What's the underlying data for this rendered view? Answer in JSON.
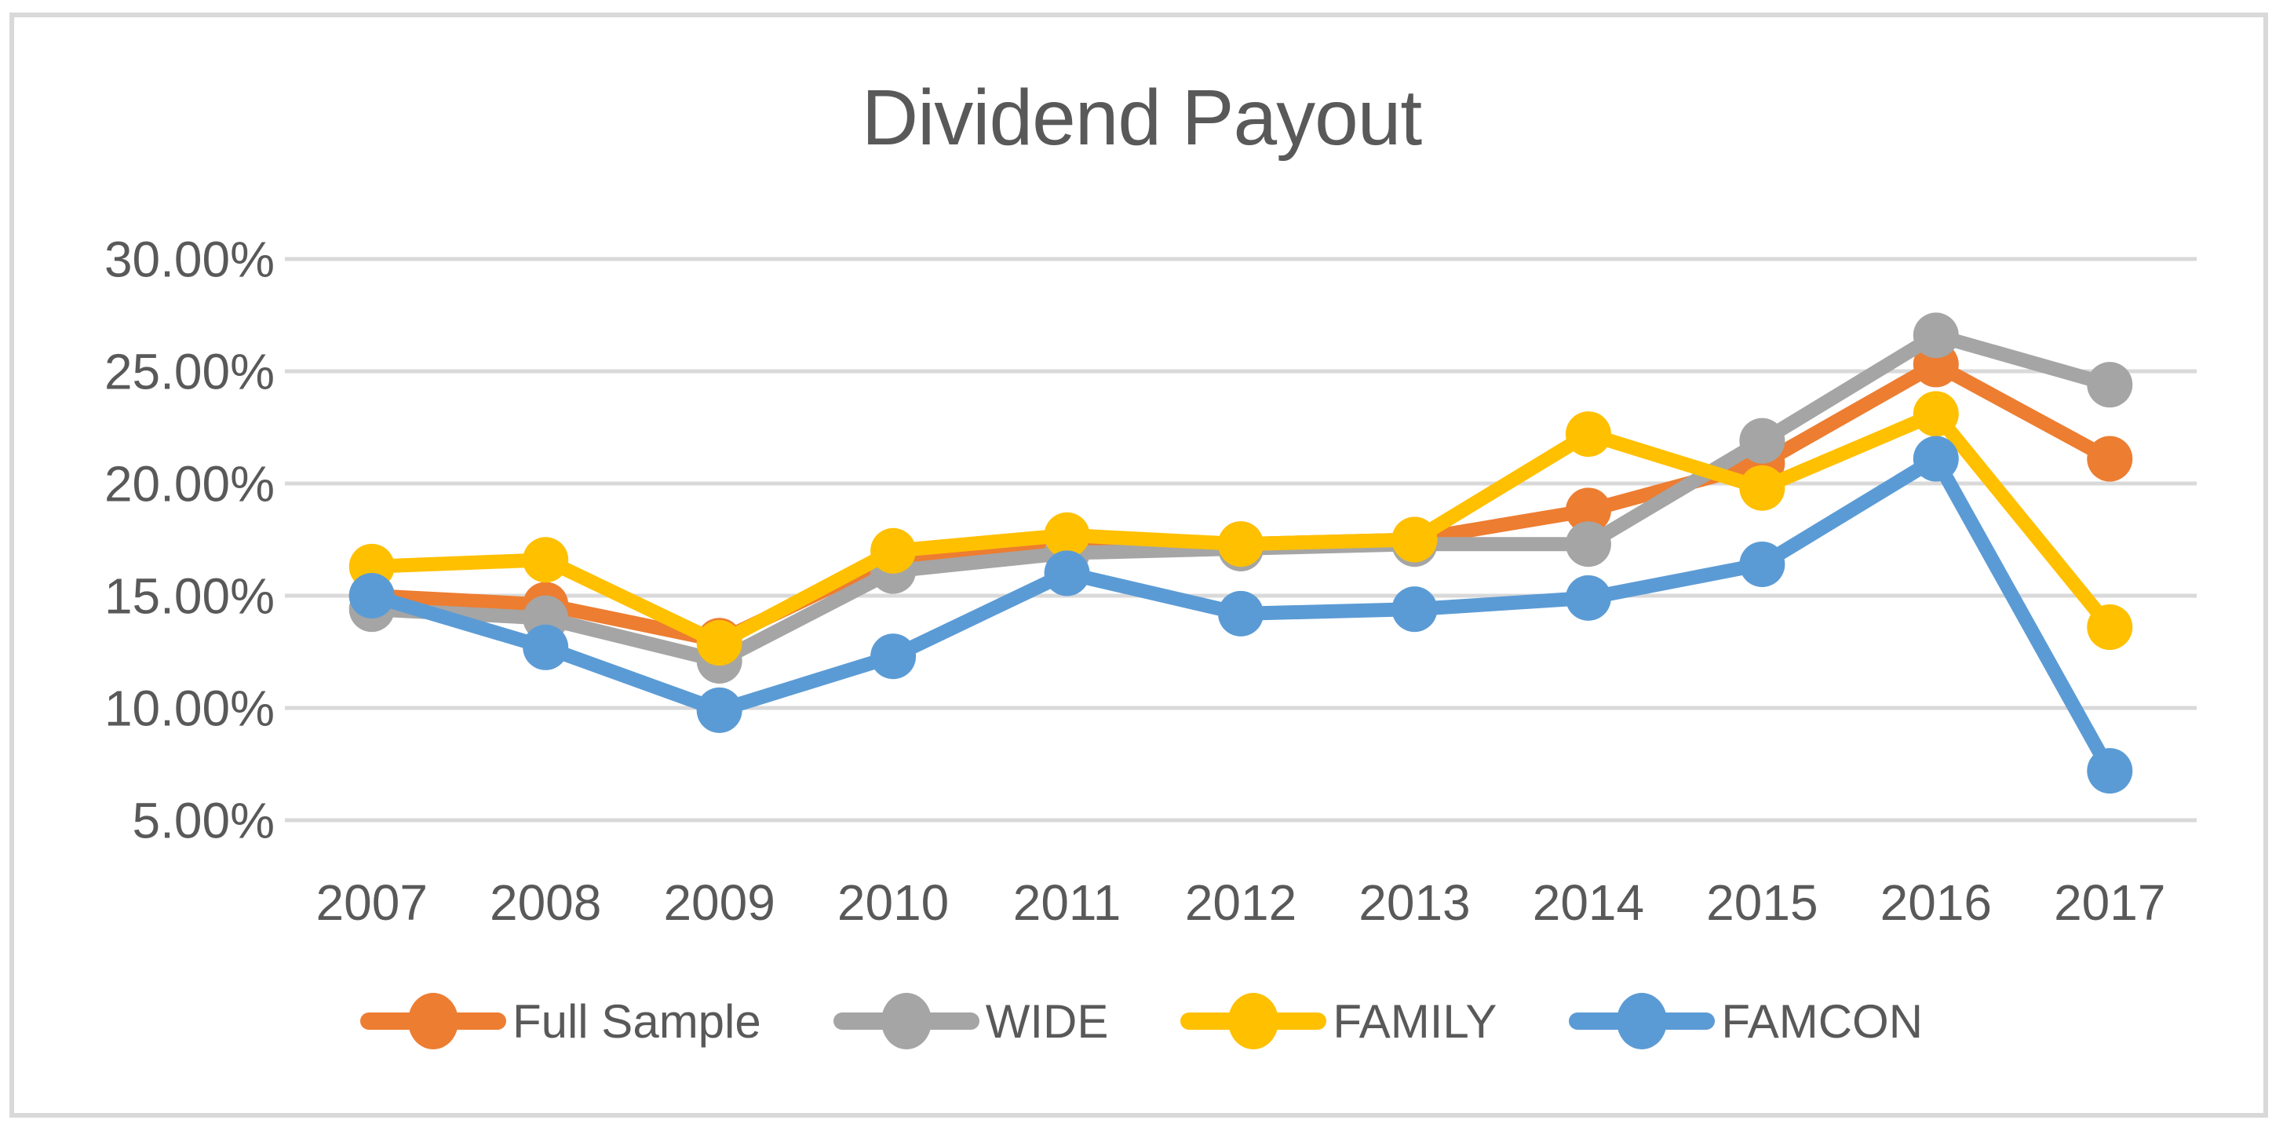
{
  "chart_data": {
    "type": "line",
    "title": "Dividend Payout",
    "categories": [
      "2007",
      "2008",
      "2009",
      "2010",
      "2011",
      "2012",
      "2013",
      "2014",
      "2015",
      "2016",
      "2017"
    ],
    "series": [
      {
        "name": "Full Sample",
        "color": "#ED7D31",
        "values": [
          15.0,
          14.6,
          13.0,
          16.7,
          17.2,
          17.3,
          17.5,
          18.8,
          20.9,
          25.3,
          21.1
        ]
      },
      {
        "name": "WIDE",
        "color": "#A5A5A5",
        "values": [
          14.4,
          14.0,
          12.1,
          16.1,
          16.9,
          17.1,
          17.3,
          17.3,
          21.9,
          26.6,
          24.4
        ]
      },
      {
        "name": "FAMILY",
        "color": "#FFC000",
        "values": [
          16.3,
          16.6,
          12.9,
          17.0,
          17.7,
          17.3,
          17.5,
          22.2,
          19.8,
          23.1,
          13.6
        ]
      },
      {
        "name": "FAMCON",
        "color": "#5B9BD5",
        "values": [
          15.0,
          12.7,
          9.9,
          12.3,
          16.0,
          14.2,
          14.4,
          14.9,
          16.4,
          21.1,
          7.2
        ]
      }
    ],
    "y_axis": {
      "tick_labels": [
        "30.00%",
        "25.00%",
        "20.00%",
        "15.00%",
        "10.00%",
        "5.00%"
      ],
      "tick_values": [
        30,
        25,
        20,
        15,
        10,
        5
      ],
      "min": 5,
      "max": 30
    },
    "legend": {
      "position": "bottom",
      "entries": [
        "Full Sample",
        "WIDE",
        "FAMILY",
        "FAMCON"
      ]
    },
    "grid": "on",
    "colors": {
      "gridline": "#D9D9D9",
      "frame_border": "#D9D9D9",
      "text": "#595959",
      "background": "#FFFFFF"
    }
  }
}
